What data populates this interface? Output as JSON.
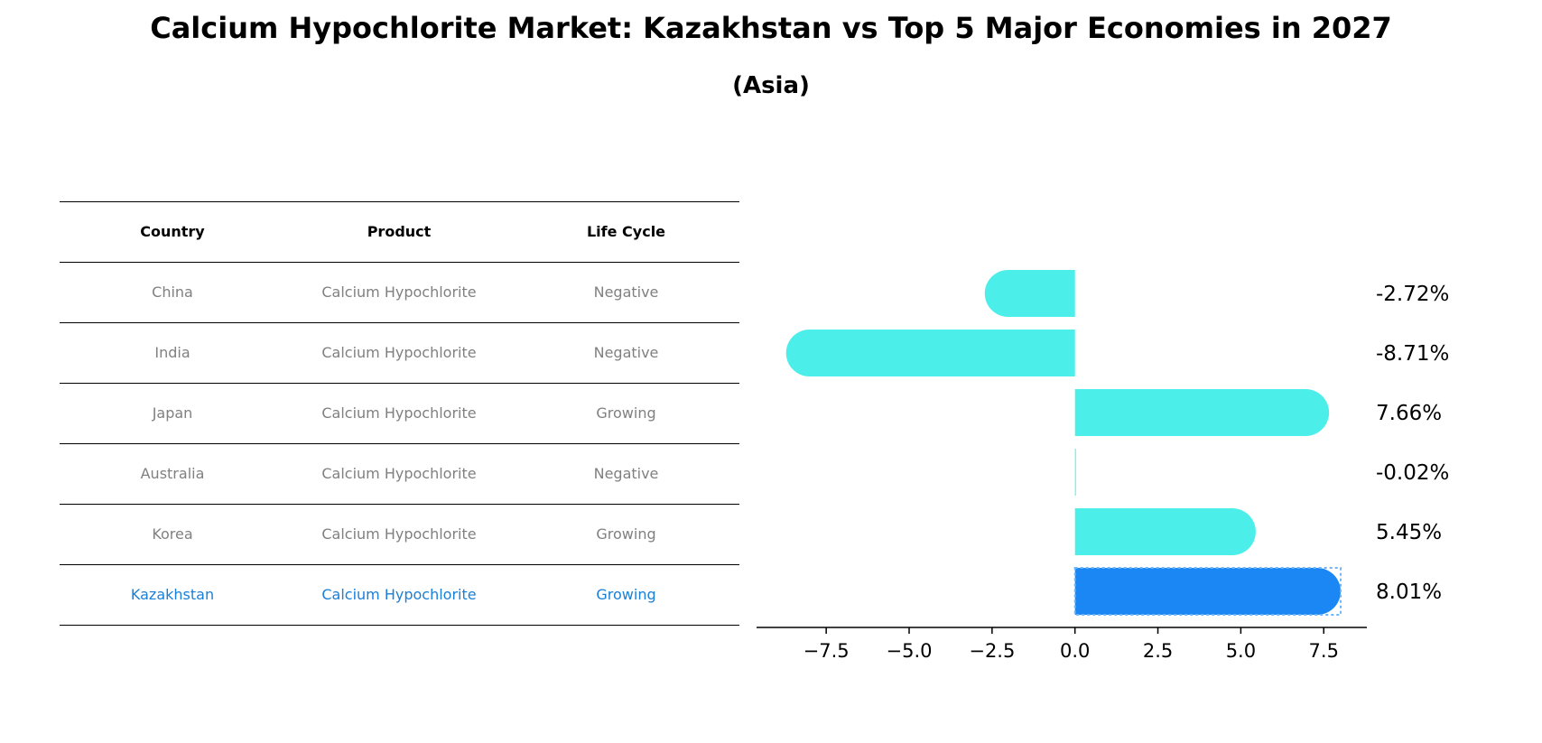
{
  "title": "Calcium Hypochlorite Market: Kazakhstan vs Top 5 Major Economies in 2027",
  "subtitle": "(Asia)",
  "table": {
    "headers": [
      "Country",
      "Product",
      "Life Cycle"
    ],
    "rows": [
      [
        "China",
        "Calcium Hypochlorite",
        "Negative"
      ],
      [
        "India",
        "Calcium Hypochlorite",
        "Negative"
      ],
      [
        "Japan",
        "Calcium Hypochlorite",
        "Growing"
      ],
      [
        "Australia",
        "Calcium Hypochlorite",
        "Negative"
      ],
      [
        "Korea",
        "Calcium Hypochlorite",
        "Growing"
      ],
      [
        "Kazakhstan",
        "Calcium Hypochlorite",
        "Growing"
      ]
    ]
  },
  "chart_data": {
    "type": "bar",
    "orientation": "horizontal",
    "categories": [
      "China",
      "India",
      "Japan",
      "Australia",
      "Korea",
      "Kazakhstan"
    ],
    "values": [
      -2.72,
      -8.71,
      7.66,
      -0.02,
      5.45,
      8.01
    ],
    "value_labels": [
      "-2.72%",
      "-8.71%",
      "7.66%",
      "-0.02%",
      "5.45%",
      "8.01%"
    ],
    "xlim": [
      -9.6,
      8.8
    ],
    "xticks": [
      -7.5,
      -5.0,
      -2.5,
      0.0,
      2.5,
      5.0,
      7.5
    ],
    "xtick_labels": [
      "−7.5",
      "−5.0",
      "−2.5",
      "0.0",
      "2.5",
      "5.0",
      "7.5"
    ],
    "highlight": "Kazakhstan",
    "colors": {
      "bar": "#4ceeea",
      "highlight": "#1a87f4",
      "highlight_text": "#1a7fd6"
    },
    "grid": false
  }
}
